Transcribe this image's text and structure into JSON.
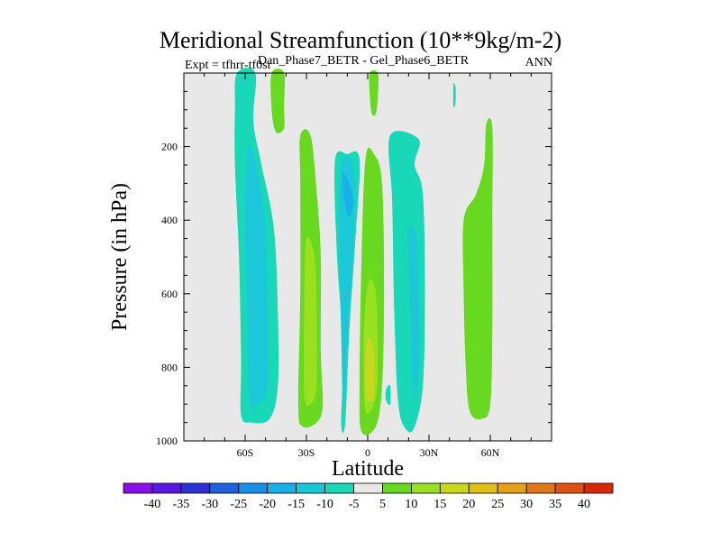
{
  "chart_data": {
    "type": "contour",
    "title": "Meridional Streamfunction (10**9kg/m-2)",
    "subtitle": "Dan_Phase7_BETR - Gel_Phase6_BETR",
    "left_note": "Expt = tfhrr-tf0sr",
    "right_note": "ANN",
    "xlabel": "Latitude",
    "ylabel": "Pressure (in hPa)",
    "xlim": [
      -90,
      90
    ],
    "ylim": [
      1000,
      0
    ],
    "x_ticks": [
      {
        "value": -60,
        "label": "60S"
      },
      {
        "value": -30,
        "label": "30S"
      },
      {
        "value": 0,
        "label": "0"
      },
      {
        "value": 30,
        "label": "30N"
      },
      {
        "value": 60,
        "label": "60N"
      }
    ],
    "y_ticks": [
      {
        "value": 200,
        "label": "200"
      },
      {
        "value": 400,
        "label": "400"
      },
      {
        "value": 600,
        "label": "600"
      },
      {
        "value": 800,
        "label": "800"
      },
      {
        "value": 1000,
        "label": "1000"
      }
    ],
    "colorbar": {
      "labels": [
        "-40",
        "-35",
        "-30",
        "-25",
        "-20",
        "-15",
        "-10",
        "-5",
        "5",
        "10",
        "15",
        "20",
        "25",
        "30",
        "35",
        "40"
      ],
      "colors": [
        "#8a10e8",
        "#5a18e0",
        "#3030d8",
        "#1e60e0",
        "#1890e8",
        "#18b0e8",
        "#1cc8d8",
        "#18d8b8",
        "#e8e8e8",
        "#68d820",
        "#98e020",
        "#c8d820",
        "#e0c018",
        "#e8a018",
        "#e07818",
        "#e05010",
        "#d82808"
      ]
    },
    "contour_regions": [
      {
        "name": "sh-high-lat-negative",
        "level": "-5",
        "color": "#18d8b8",
        "points": [
          [
            -64,
            0
          ],
          [
            -55,
            0
          ],
          [
            -56,
            130
          ],
          [
            -52,
            250
          ],
          [
            -46,
            420
          ],
          [
            -44,
            650
          ],
          [
            -44,
            850
          ],
          [
            -48,
            940
          ],
          [
            -57,
            950
          ],
          [
            -62,
            930
          ],
          [
            -62,
            780
          ],
          [
            -63,
            500
          ],
          [
            -65,
            250
          ],
          [
            -65,
            100
          ]
        ]
      },
      {
        "name": "sh-high-lat-core",
        "level": "-10",
        "color": "#1cc8d8",
        "points": [
          [
            -59,
            210
          ],
          [
            -55,
            240
          ],
          [
            -50,
            420
          ],
          [
            -49,
            650
          ],
          [
            -49,
            850
          ],
          [
            -54,
            900
          ],
          [
            -58,
            880
          ],
          [
            -59,
            650
          ],
          [
            -60,
            420
          ]
        ]
      },
      {
        "name": "sh-upper-positive",
        "level": "5",
        "color": "#68d820",
        "points": [
          [
            -47,
            0
          ],
          [
            -41,
            0
          ],
          [
            -41,
            90
          ],
          [
            -41,
            150
          ],
          [
            -45,
            160
          ],
          [
            -47,
            100
          ]
        ]
      },
      {
        "name": "sh-midlat-positive",
        "level": "5",
        "color": "#68d820",
        "points": [
          [
            -33,
            170
          ],
          [
            -28,
            170
          ],
          [
            -25,
            320
          ],
          [
            -23,
            500
          ],
          [
            -23,
            750
          ],
          [
            -22,
            900
          ],
          [
            -25,
            950
          ],
          [
            -32,
            960
          ],
          [
            -34,
            900
          ],
          [
            -33,
            600
          ],
          [
            -33,
            300
          ]
        ]
      },
      {
        "name": "sh-midlat-core",
        "level": "10",
        "color": "#98e020",
        "points": [
          [
            -30,
            450
          ],
          [
            -26,
            500
          ],
          [
            -25,
            650
          ],
          [
            -25,
            850
          ],
          [
            -28,
            900
          ],
          [
            -31,
            870
          ],
          [
            -31,
            600
          ]
        ]
      },
      {
        "name": "tropical-negative",
        "level": "-5",
        "color": "#18d8b8",
        "points": [
          [
            -16,
            240
          ],
          [
            -10,
            220
          ],
          [
            -4,
            235
          ],
          [
            -6,
            450
          ],
          [
            -9,
            700
          ],
          [
            -11,
            950
          ],
          [
            -13,
            950
          ],
          [
            -12,
            750
          ],
          [
            -15,
            500
          ]
        ]
      },
      {
        "name": "tropical-negative-core",
        "level": "-10",
        "color": "#1cc8d8",
        "points": [
          [
            -13,
            250
          ],
          [
            -7,
            255
          ],
          [
            -7,
            460
          ],
          [
            -10,
            720
          ],
          [
            -12,
            900
          ],
          [
            -13,
            700
          ],
          [
            -14,
            450
          ]
        ]
      },
      {
        "name": "tropical-negative-peak",
        "level": "-15",
        "color": "#18b0e8",
        "points": [
          [
            -12,
            270
          ],
          [
            -9,
            300
          ],
          [
            -7,
            350
          ],
          [
            -9,
            390
          ],
          [
            -11,
            360
          ],
          [
            -12,
            320
          ]
        ]
      },
      {
        "name": "equatorial-positive",
        "level": "5",
        "color": "#68d820",
        "points": [
          [
            -1,
            230
          ],
          [
            3,
            220
          ],
          [
            7,
            300
          ],
          [
            8,
            600
          ],
          [
            7,
            850
          ],
          [
            4,
            960
          ],
          [
            -3,
            975
          ],
          [
            -4,
            850
          ],
          [
            -3,
            500
          ]
        ]
      },
      {
        "name": "equatorial-core",
        "level": "10",
        "color": "#98e020",
        "points": [
          [
            1,
            560
          ],
          [
            4,
            600
          ],
          [
            5,
            750
          ],
          [
            4,
            880
          ],
          [
            -1,
            920
          ],
          [
            -2,
            750
          ],
          [
            -1,
            620
          ]
        ]
      },
      {
        "name": "equatorial-peak",
        "level": "15",
        "color": "#c8d820",
        "points": [
          [
            0,
            720
          ],
          [
            3,
            760
          ],
          [
            3,
            880
          ],
          [
            -1,
            880
          ],
          [
            -1,
            790
          ]
        ]
      },
      {
        "name": "upper-equatorial-positive",
        "level": "5",
        "color": "#68d820",
        "points": [
          [
            1,
            0
          ],
          [
            5,
            0
          ],
          [
            5,
            60
          ],
          [
            4,
            110
          ],
          [
            2,
            110
          ],
          [
            1,
            60
          ]
        ]
      },
      {
        "name": "nh-subtropical-negative",
        "level": "-5",
        "color": "#18d8b8",
        "points": [
          [
            11,
            170
          ],
          [
            25,
            180
          ],
          [
            23,
            250
          ],
          [
            27,
            330
          ],
          [
            28,
            600
          ],
          [
            27,
            850
          ],
          [
            23,
            960
          ],
          [
            19,
            970
          ],
          [
            15,
            900
          ],
          [
            13,
            650
          ],
          [
            12,
            350
          ]
        ]
      },
      {
        "name": "nh-subtropical-core",
        "level": "-10",
        "color": "#1cc8d8",
        "points": [
          [
            20,
            420
          ],
          [
            24,
            450
          ],
          [
            25,
            600
          ],
          [
            25,
            820
          ],
          [
            22,
            870
          ],
          [
            21,
            650
          ],
          [
            20,
            520
          ]
        ]
      },
      {
        "name": "nh-small-negative",
        "level": "-5",
        "color": "#18d8b8",
        "points": [
          [
            9,
            860
          ],
          [
            11,
            850
          ],
          [
            11,
            900
          ],
          [
            9,
            890
          ]
        ]
      },
      {
        "name": "nh-upper-negative",
        "level": "-5",
        "color": "#18d8b8",
        "points": [
          [
            42,
            30
          ],
          [
            43,
            40
          ],
          [
            43,
            80
          ],
          [
            42,
            90
          ]
        ]
      },
      {
        "name": "nh-midlat-positive",
        "level": "5",
        "color": "#68d820",
        "points": [
          [
            58,
            140
          ],
          [
            61,
            150
          ],
          [
            61,
            400
          ],
          [
            61,
            700
          ],
          [
            60,
            900
          ],
          [
            56,
            940
          ],
          [
            50,
            920
          ],
          [
            48,
            800
          ],
          [
            47,
            600
          ],
          [
            47,
            400
          ],
          [
            53,
            330
          ],
          [
            57,
            250
          ]
        ]
      }
    ]
  }
}
